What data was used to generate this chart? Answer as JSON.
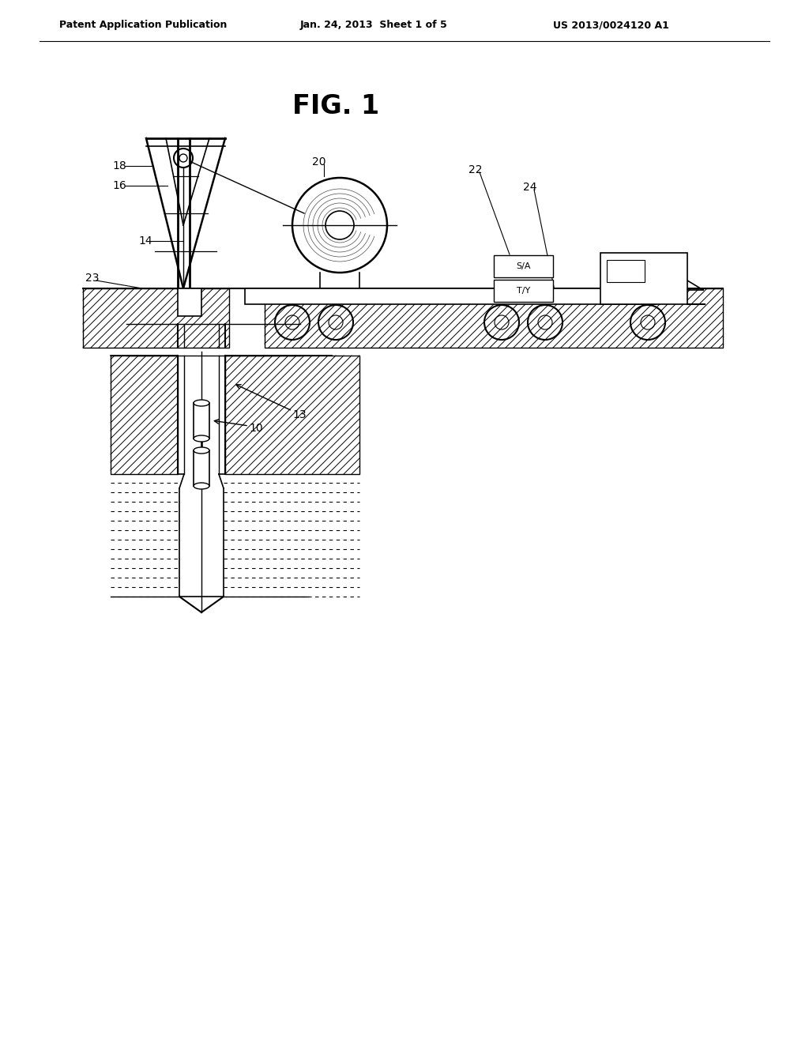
{
  "header_left": "Patent Application Publication",
  "header_mid": "Jan. 24, 2013  Sheet 1 of 5",
  "header_right": "US 2013/0024120 A1",
  "fig_title": "FIG. 1",
  "label_18": "18",
  "label_16": "16",
  "label_14": "14",
  "label_20": "20",
  "label_22": "22",
  "label_24": "24",
  "label_23": "23",
  "label_13": "13",
  "label_10": "10",
  "bg_color": "#ffffff",
  "line_color": "#000000"
}
